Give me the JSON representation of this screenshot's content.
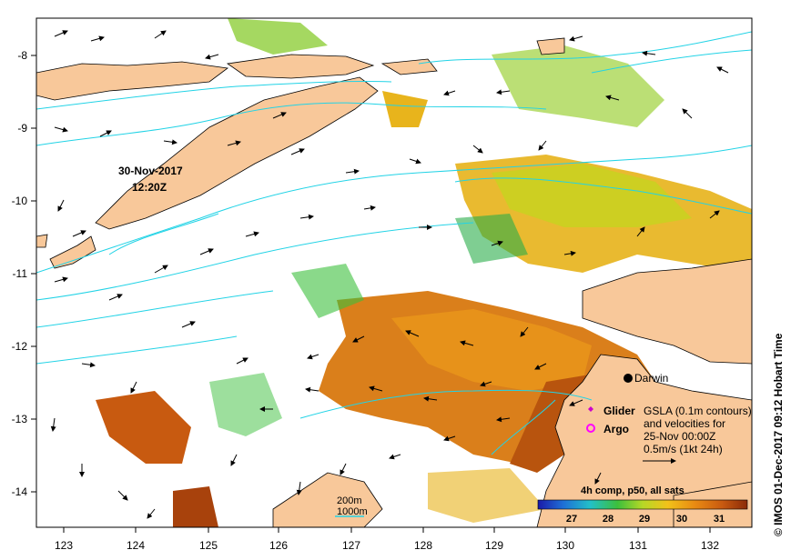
{
  "map": {
    "timestamp_line1": "30-Nov-2017",
    "timestamp_line2": "12:20Z",
    "city": "Darwin",
    "legend_glider": "Glider",
    "legend_argo": "Argo",
    "gsla_note_line1": "GSLA (0.1m contours)",
    "gsla_note_line2": "and velocities for",
    "gsla_note_line3": "25-Nov 00:00Z",
    "gsla_note_line4": "0.5m/s (1kt 24h)",
    "contour_200": "200m",
    "contour_1000": "1000m",
    "colorbar_title": "4h comp, p50, all sats",
    "colorbar_ticks": [
      "27",
      "28",
      "29",
      "30",
      "31"
    ],
    "credit": "© IMOS 01-Dec-2017 09:12 Hobart Time"
  },
  "axes": {
    "x_ticks": [
      "123",
      "124",
      "125",
      "126",
      "127",
      "128",
      "129",
      "130",
      "131",
      "132"
    ],
    "y_ticks": [
      "-8",
      "-9",
      "-10",
      "-11",
      "-12",
      "-13",
      "-14"
    ]
  },
  "colors": {
    "land": "#f8c89a",
    "contour": "#22d3e6",
    "glider": "#cc00cc",
    "argo": "#ff00ff",
    "sst_scale": [
      "#1a1aa8",
      "#1f6fd6",
      "#22c0c8",
      "#3cbf3c",
      "#b6d826",
      "#f2c21a",
      "#e98a12",
      "#c85a10",
      "#8a2a08"
    ]
  }
}
